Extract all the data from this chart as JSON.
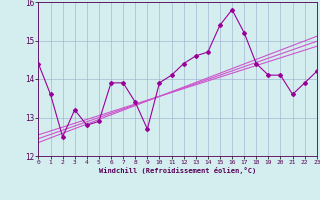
{
  "xlabel": "Windchill (Refroidissement éolien,°C)",
  "x": [
    0,
    1,
    2,
    3,
    4,
    5,
    6,
    7,
    8,
    9,
    10,
    11,
    12,
    13,
    14,
    15,
    16,
    17,
    18,
    19,
    20,
    21,
    22,
    23
  ],
  "y_main": [
    14.4,
    13.6,
    12.5,
    13.2,
    12.8,
    12.9,
    13.9,
    13.9,
    13.4,
    12.7,
    13.9,
    14.1,
    14.4,
    14.6,
    14.7,
    15.4,
    15.8,
    15.2,
    14.4,
    14.1,
    14.1,
    13.6,
    13.9,
    14.2
  ],
  "y_reg1": [
    12.55,
    12.65,
    12.75,
    12.85,
    12.95,
    13.05,
    13.15,
    13.25,
    13.35,
    13.45,
    13.55,
    13.65,
    13.75,
    13.85,
    13.95,
    14.05,
    14.15,
    14.25,
    14.35,
    14.45,
    14.55,
    14.65,
    14.75,
    14.85
  ],
  "y_reg2": [
    12.45,
    12.56,
    12.67,
    12.78,
    12.89,
    13.0,
    13.11,
    13.22,
    13.33,
    13.44,
    13.55,
    13.66,
    13.77,
    13.88,
    13.99,
    14.1,
    14.21,
    14.32,
    14.43,
    14.54,
    14.65,
    14.76,
    14.87,
    14.98
  ],
  "y_reg3": [
    12.35,
    12.47,
    12.59,
    12.71,
    12.83,
    12.95,
    13.07,
    13.19,
    13.31,
    13.43,
    13.55,
    13.67,
    13.79,
    13.91,
    14.03,
    14.15,
    14.27,
    14.39,
    14.51,
    14.63,
    14.75,
    14.87,
    14.99,
    15.11
  ],
  "color_main": "#990099",
  "color_reg": "#cc55cc",
  "bg_color": "#d4eef0",
  "grid_color": "#99aacc",
  "axis_color": "#550055",
  "ylim": [
    12.0,
    16.0
  ],
  "xlim": [
    0,
    23
  ]
}
